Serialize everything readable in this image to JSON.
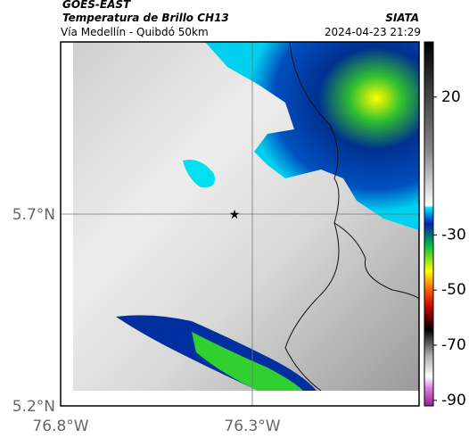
{
  "header": {
    "source": "GOES-EAST",
    "title": "Temperatura de Brillo CH13",
    "brand": "SIATA",
    "subtitle": "Vía Medellín - Quibdó 50km",
    "timestamp": "2024-04-23 21:29"
  },
  "axes": {
    "y_labels": [
      "5.7°N",
      "5.2°N"
    ],
    "x_labels": [
      "76.8°W",
      "76.3°W"
    ]
  },
  "colorbar": {
    "lim": [
      40,
      -92
    ],
    "ticks": [
      20,
      -30,
      -50,
      -70,
      -90
    ]
  }
}
